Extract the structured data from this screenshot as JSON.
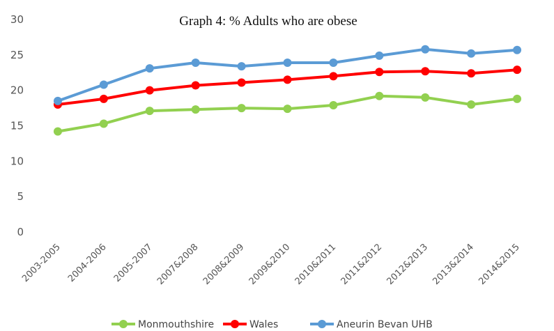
{
  "chart_data": {
    "type": "line",
    "title": "Graph 4:  % Adults who are obese",
    "categories": [
      "2003-2005",
      "2004-2006",
      "2005-2007",
      "2007&2008",
      "2008&2009",
      "2009&2010",
      "2010&2011",
      "2011&2012",
      "2012&2013",
      "2013&2014",
      "2014&2015"
    ],
    "ylim": [
      0,
      30
    ],
    "yticks": [
      "0",
      "5",
      "10",
      "15",
      "20",
      "25",
      "30"
    ],
    "grid": false,
    "legend_position": "bottom",
    "series": [
      {
        "name": "Monmouthshire",
        "color": "#92d050",
        "values": [
          14.2,
          15.3,
          17.1,
          17.3,
          17.5,
          17.4,
          17.9,
          19.2,
          19.0,
          18.0,
          18.8
        ]
      },
      {
        "name": "Wales",
        "color": "#ff0000",
        "values": [
          18.0,
          18.8,
          20.0,
          20.7,
          21.1,
          21.5,
          22.0,
          22.6,
          22.7,
          22.4,
          22.9
        ]
      },
      {
        "name": "Aneurin Bevan UHB",
        "color": "#5b9bd5",
        "values": [
          18.5,
          20.8,
          23.1,
          23.9,
          23.4,
          23.9,
          23.9,
          24.9,
          25.8,
          25.2,
          25.7
        ]
      }
    ]
  }
}
